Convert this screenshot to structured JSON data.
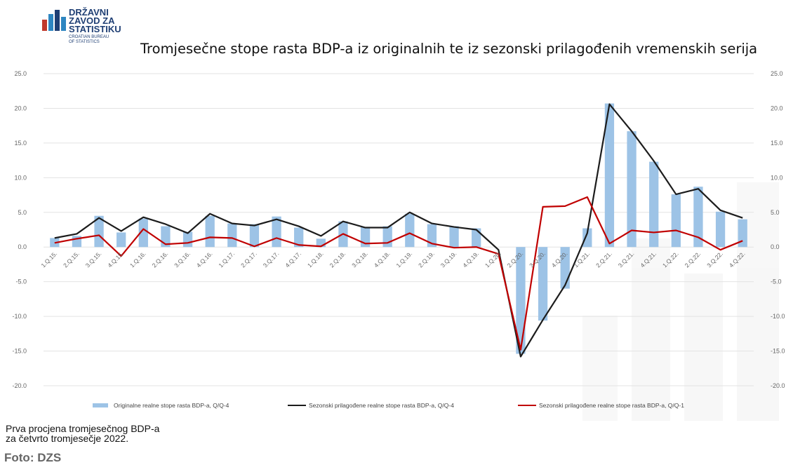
{
  "logo": {
    "line1": "DRŽAVNI",
    "line2": "ZAVOD ZA",
    "line3": "STATISTIKU",
    "sub1": "CROATIAN BUREAU",
    "sub2": "OF STATISTICS",
    "colors": [
      "#c0392b",
      "#2e86c1",
      "#1f3f74"
    ]
  },
  "caption": {
    "line1": "Prva procjena tromjesečnog BDP-a",
    "line2": "za četvrto tromjesečje 2022.",
    "credit": "Foto: DZS"
  },
  "chart_data": {
    "type": "bar",
    "title": "Tromjesečne stope rasta BDP-a iz  originalnih te iz sezonski prilagođenih vremenskih serija",
    "categories": [
      "1.Q.15.",
      "2.Q.15.",
      "3.Q.15.",
      "4.Q.15.",
      "1.Q.16.",
      "2.Q.16.",
      "3.Q.16.",
      "4.Q.16.",
      "1.Q.17.",
      "2.Q.17.",
      "3.Q.17.",
      "4.Q.17.",
      "1.Q.18.",
      "2.Q.18.",
      "3.Q.18.",
      "4.Q.18.",
      "1.Q.19.",
      "2.Q.19.",
      "3.Q.19.",
      "4.Q.19.",
      "1.Q.20.",
      "2.Q.20.",
      "3.Q.20.",
      "4.Q.20.",
      "1.Q.21.",
      "2.Q.21.",
      "3.Q.21.",
      "4.Q.21.",
      "1.Q.22.",
      "2.Q.22.",
      "3.Q.22.",
      "4.Q.22."
    ],
    "ylim": [
      -20,
      25
    ],
    "yticks": [
      "25.0",
      "20.0",
      "15.0",
      "10.0",
      "5.0",
      "0.0",
      "-5.0",
      "-10.0",
      "-15.0",
      "-20.0"
    ],
    "grid": true,
    "legend_position": "bottom",
    "series": [
      {
        "name": "Originalne realne stope rasta BDP-a, Q/Q-4",
        "kind": "bar",
        "color": "#9dc3e6",
        "values": [
          1.3,
          1.6,
          4.5,
          2.1,
          4.1,
          3.0,
          2.2,
          4.5,
          3.4,
          3.3,
          4.4,
          2.8,
          1.2,
          3.7,
          2.9,
          3.0,
          4.8,
          3.3,
          3.0,
          2.7,
          0.0,
          -15.4,
          -10.6,
          -6.0,
          2.7,
          20.7,
          16.7,
          12.3,
          7.6,
          8.7,
          5.1,
          4.0
        ]
      },
      {
        "name": "Sezonski prilagođene realne stope rasta BDP-a, Q/Q-4",
        "kind": "line",
        "color": "#1c1c1c",
        "values": [
          1.3,
          1.9,
          4.2,
          2.3,
          4.3,
          3.3,
          2.0,
          4.8,
          3.4,
          3.1,
          4.0,
          3.0,
          1.6,
          3.7,
          2.8,
          2.8,
          5.0,
          3.4,
          2.9,
          2.5,
          -0.4,
          -15.8,
          -10.5,
          -5.5,
          2.0,
          20.6,
          16.7,
          12.4,
          7.6,
          8.4,
          5.3,
          4.2
        ]
      },
      {
        "name": "Sezonski prilagođene realne stope rasta BDP-a, Q/Q-1",
        "kind": "line",
        "color": "#c00000",
        "values": [
          0.6,
          1.2,
          1.7,
          -1.3,
          2.6,
          0.4,
          0.6,
          1.4,
          1.3,
          0.1,
          1.3,
          0.3,
          0.1,
          1.9,
          0.5,
          0.6,
          2.0,
          0.5,
          -0.1,
          0.0,
          -1.0,
          -14.8,
          5.8,
          5.9,
          7.2,
          0.5,
          2.4,
          2.1,
          2.4,
          1.4,
          -0.4,
          0.9
        ]
      }
    ]
  }
}
